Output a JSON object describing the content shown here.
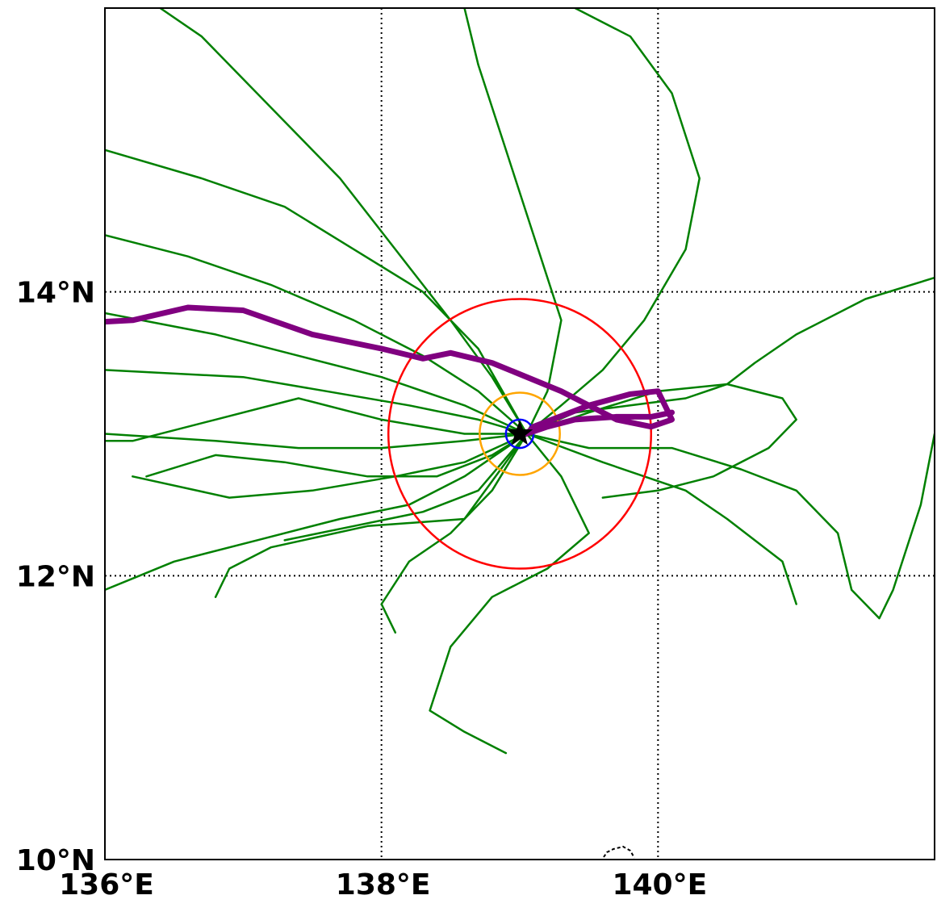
{
  "colors": {
    "ensemble_member": "#008000",
    "ensemble_mean": "#800080",
    "radius_large": "#ff0000",
    "radius_medium": "#ffa500",
    "radius_small": "#0000ff",
    "storm_marker": "#000000",
    "coastline": "#000000"
  },
  "axes": {
    "x_ticks": [
      {
        "label": "136°E",
        "value": 136
      },
      {
        "label": "138°E",
        "value": 138
      },
      {
        "label": "140°E",
        "value": 140
      }
    ],
    "y_ticks": [
      {
        "label": "10°N",
        "value": 10
      },
      {
        "label": "12°N",
        "value": 12
      },
      {
        "label": "14°N",
        "value": 14
      }
    ]
  },
  "chart_data": {
    "type": "map",
    "projection": "lat-lon",
    "xlim": [
      136.0,
      142.0
    ],
    "ylim": [
      10.0,
      16.0
    ],
    "grid": true,
    "storm_center": {
      "lon": 139.0,
      "lat": 13.0,
      "marker": "star-icon"
    },
    "range_rings_deg": [
      {
        "radius": 0.95,
        "color": "red"
      },
      {
        "radius": 0.29,
        "color": "orange"
      },
      {
        "radius": 0.1,
        "color": "blue"
      }
    ],
    "mean_track": [
      [
        140.1,
        13.15
      ],
      [
        139.95,
        13.12
      ],
      [
        139.7,
        13.12
      ],
      [
        139.4,
        13.1
      ],
      [
        139.2,
        13.05
      ],
      [
        139.05,
        13.0
      ],
      [
        139.1,
        13.05
      ],
      [
        139.5,
        13.2
      ],
      [
        139.8,
        13.28
      ],
      [
        140.0,
        13.3
      ],
      [
        140.1,
        13.1
      ],
      [
        139.95,
        13.05
      ],
      [
        139.7,
        13.1
      ],
      [
        139.3,
        13.3
      ],
      [
        138.8,
        13.5
      ],
      [
        138.5,
        13.57
      ],
      [
        138.3,
        13.53
      ],
      [
        138.0,
        13.6
      ],
      [
        137.5,
        13.7
      ],
      [
        137.0,
        13.87
      ],
      [
        136.6,
        13.89
      ],
      [
        136.2,
        13.8
      ],
      [
        136.0,
        13.79
      ]
    ],
    "member_tracks": [
      [
        [
          139.05,
          13.0
        ],
        [
          139.4,
          13.15
        ],
        [
          139.8,
          13.2
        ],
        [
          140.2,
          13.25
        ],
        [
          140.5,
          13.35
        ],
        [
          140.7,
          13.5
        ],
        [
          141.0,
          13.7
        ],
        [
          141.5,
          13.95
        ],
        [
          142.0,
          14.1
        ]
      ],
      [
        [
          139.05,
          13.0
        ],
        [
          139.3,
          13.2
        ],
        [
          139.6,
          13.45
        ],
        [
          139.9,
          13.8
        ],
        [
          140.2,
          14.3
        ],
        [
          140.3,
          14.8
        ],
        [
          140.1,
          15.4
        ],
        [
          139.8,
          15.8
        ],
        [
          139.4,
          16.0
        ]
      ],
      [
        [
          139.05,
          13.0
        ],
        [
          139.2,
          13.3
        ],
        [
          139.3,
          13.8
        ],
        [
          139.1,
          14.4
        ],
        [
          138.9,
          15.0
        ],
        [
          138.7,
          15.6
        ],
        [
          138.6,
          16.0
        ]
      ],
      [
        [
          139.05,
          13.0
        ],
        [
          138.8,
          13.4
        ],
        [
          138.5,
          13.8
        ],
        [
          138.1,
          14.3
        ],
        [
          137.7,
          14.8
        ],
        [
          137.2,
          15.3
        ],
        [
          136.7,
          15.8
        ],
        [
          136.4,
          16.0
        ]
      ],
      [
        [
          139.05,
          13.0
        ],
        [
          138.7,
          13.3
        ],
        [
          138.3,
          13.55
        ],
        [
          137.8,
          13.8
        ],
        [
          137.2,
          14.05
        ],
        [
          136.6,
          14.25
        ],
        [
          136.0,
          14.4
        ]
      ],
      [
        [
          139.05,
          13.0
        ],
        [
          138.6,
          13.2
        ],
        [
          138.0,
          13.4
        ],
        [
          137.4,
          13.55
        ],
        [
          136.8,
          13.7
        ],
        [
          136.0,
          13.85
        ]
      ],
      [
        [
          139.05,
          13.0
        ],
        [
          138.7,
          13.1
        ],
        [
          138.2,
          13.2
        ],
        [
          137.6,
          13.3
        ],
        [
          137.0,
          13.4
        ],
        [
          136.0,
          13.45
        ]
      ],
      [
        [
          139.05,
          13.0
        ],
        [
          138.6,
          12.95
        ],
        [
          138.0,
          12.9
        ],
        [
          137.4,
          12.9
        ],
        [
          136.8,
          12.95
        ],
        [
          136.0,
          13.0
        ]
      ],
      [
        [
          139.05,
          13.0
        ],
        [
          138.6,
          12.8
        ],
        [
          138.1,
          12.7
        ],
        [
          137.5,
          12.6
        ],
        [
          136.9,
          12.55
        ],
        [
          136.2,
          12.7
        ]
      ],
      [
        [
          139.05,
          13.0
        ],
        [
          138.6,
          12.7
        ],
        [
          138.2,
          12.5
        ],
        [
          137.7,
          12.4
        ],
        [
          137.1,
          12.25
        ],
        [
          136.5,
          12.1
        ],
        [
          136.0,
          11.9
        ]
      ],
      [
        [
          139.05,
          13.0
        ],
        [
          138.7,
          12.6
        ],
        [
          138.3,
          12.45
        ],
        [
          137.8,
          12.35
        ],
        [
          137.3,
          12.25
        ]
      ],
      [
        [
          139.05,
          13.0
        ],
        [
          139.3,
          12.7
        ],
        [
          139.5,
          12.3
        ],
        [
          139.2,
          12.05
        ],
        [
          138.8,
          11.85
        ],
        [
          138.5,
          11.5
        ],
        [
          138.35,
          11.05
        ],
        [
          138.6,
          10.9
        ],
        [
          138.9,
          10.75
        ]
      ],
      [
        [
          139.05,
          13.0
        ],
        [
          139.6,
          12.8
        ],
        [
          140.2,
          12.6
        ],
        [
          140.5,
          12.4
        ],
        [
          140.9,
          12.1
        ],
        [
          141.0,
          11.8
        ]
      ],
      [
        [
          139.05,
          13.0
        ],
        [
          139.5,
          12.9
        ],
        [
          140.1,
          12.9
        ],
        [
          140.6,
          12.75
        ],
        [
          141.0,
          12.6
        ],
        [
          141.3,
          12.3
        ],
        [
          141.4,
          11.9
        ],
        [
          141.6,
          11.7
        ],
        [
          141.7,
          11.9
        ],
        [
          141.9,
          12.5
        ],
        [
          142.0,
          13.0
        ]
      ],
      [
        [
          139.05,
          13.0
        ],
        [
          139.5,
          13.15
        ],
        [
          140.0,
          13.3
        ],
        [
          140.5,
          13.35
        ],
        [
          140.9,
          13.25
        ],
        [
          141.0,
          13.1
        ],
        [
          140.8,
          12.9
        ],
        [
          140.4,
          12.7
        ],
        [
          140.0,
          12.6
        ],
        [
          139.6,
          12.55
        ]
      ],
      [
        [
          139.05,
          13.0
        ],
        [
          138.8,
          12.85
        ],
        [
          138.4,
          12.7
        ],
        [
          137.9,
          12.7
        ],
        [
          137.3,
          12.8
        ],
        [
          136.8,
          12.85
        ],
        [
          136.3,
          12.7
        ]
      ],
      [
        [
          139.05,
          13.0
        ],
        [
          138.7,
          13.6
        ],
        [
          138.3,
          14.0
        ],
        [
          137.8,
          14.3
        ],
        [
          137.3,
          14.6
        ],
        [
          136.7,
          14.8
        ],
        [
          136.0,
          15.0
        ]
      ],
      [
        [
          139.05,
          13.0
        ],
        [
          138.8,
          12.6
        ],
        [
          138.5,
          12.3
        ],
        [
          138.2,
          12.1
        ],
        [
          138.0,
          11.8
        ],
        [
          138.1,
          11.6
        ]
      ],
      [
        [
          139.05,
          13.0
        ],
        [
          138.6,
          12.4
        ],
        [
          137.9,
          12.35
        ],
        [
          137.2,
          12.2
        ],
        [
          136.9,
          12.05
        ],
        [
          136.8,
          11.85
        ]
      ],
      [
        [
          139.05,
          13.0
        ],
        [
          138.6,
          13.0
        ],
        [
          138.0,
          13.1
        ],
        [
          137.4,
          13.25
        ],
        [
          136.8,
          13.1
        ],
        [
          136.2,
          12.95
        ],
        [
          136.0,
          12.95
        ]
      ]
    ]
  }
}
